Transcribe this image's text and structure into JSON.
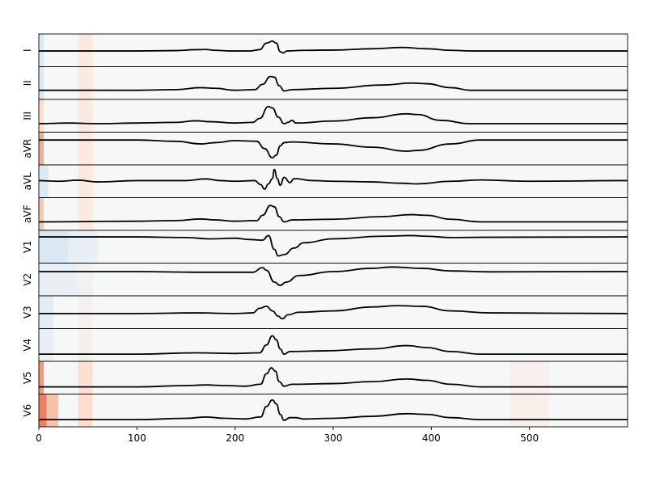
{
  "chart_data": {
    "type": "line",
    "title": "",
    "xlabel": "",
    "ylabel": "",
    "xlim": [
      0,
      600
    ],
    "ylim": [
      -1,
      1
    ],
    "x_ticks": [
      0,
      100,
      200,
      300,
      400,
      500
    ],
    "x_tick_labels": [
      "0",
      "100",
      "200",
      "300",
      "400",
      "500"
    ],
    "grid": false,
    "background_heatmap": {
      "colormap": "diverging blue-white-red",
      "base_color": "#f6f8f8",
      "description_note": "per-lead relevance shading; strongest near x=0-10 and x=40-55, faint near x=480-520"
    },
    "leads": [
      {
        "name": "I",
        "baseline": -0.05,
        "wave": [
          [
            0,
            -0.05
          ],
          [
            5,
            -0.05
          ],
          [
            100,
            -0.05
          ],
          [
            140,
            -0.02
          ],
          [
            160,
            0.05
          ],
          [
            170,
            0.06
          ],
          [
            180,
            0.0
          ],
          [
            195,
            -0.05
          ],
          [
            215,
            -0.05
          ],
          [
            225,
            0.05
          ],
          [
            232,
            0.55
          ],
          [
            238,
            0.7
          ],
          [
            242,
            0.55
          ],
          [
            246,
            -0.1
          ],
          [
            249,
            -0.2
          ],
          [
            253,
            -0.05
          ],
          [
            270,
            0.0
          ],
          [
            300,
            0.02
          ],
          [
            340,
            0.12
          ],
          [
            370,
            0.22
          ],
          [
            395,
            0.12
          ],
          [
            420,
            0.0
          ],
          [
            440,
            -0.05
          ],
          [
            600,
            -0.05
          ]
        ],
        "shade": [
          [
            "#d7e7f3",
            0,
            5
          ],
          [
            "#fde7dc",
            40,
            55
          ]
        ]
      },
      {
        "name": "II",
        "baseline": -0.55,
        "wave": [
          [
            0,
            -0.55
          ],
          [
            100,
            -0.55
          ],
          [
            140,
            -0.5
          ],
          [
            165,
            -0.35
          ],
          [
            180,
            -0.4
          ],
          [
            200,
            -0.55
          ],
          [
            220,
            -0.5
          ],
          [
            228,
            -0.1
          ],
          [
            236,
            0.5
          ],
          [
            240,
            0.45
          ],
          [
            245,
            -0.2
          ],
          [
            250,
            -0.6
          ],
          [
            258,
            -0.5
          ],
          [
            300,
            -0.4
          ],
          [
            350,
            -0.15
          ],
          [
            380,
            0.0
          ],
          [
            395,
            -0.05
          ],
          [
            420,
            -0.35
          ],
          [
            440,
            -0.55
          ],
          [
            600,
            -0.55
          ]
        ],
        "shade": [
          [
            "#d6e6f2",
            0,
            5
          ],
          [
            "#fde7dc",
            40,
            55
          ]
        ]
      },
      {
        "name": "III",
        "baseline": -0.6,
        "wave": [
          [
            0,
            -0.6
          ],
          [
            30,
            -0.55
          ],
          [
            60,
            -0.6
          ],
          [
            100,
            -0.55
          ],
          [
            140,
            -0.5
          ],
          [
            160,
            -0.38
          ],
          [
            175,
            -0.45
          ],
          [
            200,
            -0.55
          ],
          [
            218,
            -0.5
          ],
          [
            225,
            -0.2
          ],
          [
            234,
            0.7
          ],
          [
            238,
            0.6
          ],
          [
            244,
            -0.1
          ],
          [
            250,
            -0.6
          ],
          [
            254,
            -0.5
          ],
          [
            258,
            -0.35
          ],
          [
            262,
            -0.55
          ],
          [
            300,
            -0.4
          ],
          [
            340,
            -0.15
          ],
          [
            375,
            0.15
          ],
          [
            385,
            0.1
          ],
          [
            410,
            -0.35
          ],
          [
            440,
            -0.6
          ],
          [
            600,
            -0.6
          ]
        ],
        "shade": [
          [
            "#fbd9c6",
            0,
            5
          ],
          [
            "#fde7dc",
            40,
            55
          ]
        ]
      },
      {
        "name": "aVR",
        "baseline": 0.65,
        "wave": [
          [
            0,
            0.65
          ],
          [
            100,
            0.65
          ],
          [
            140,
            0.55
          ],
          [
            165,
            0.35
          ],
          [
            180,
            0.45
          ],
          [
            200,
            0.6
          ],
          [
            222,
            0.55
          ],
          [
            230,
            0.0
          ],
          [
            238,
            -0.7
          ],
          [
            242,
            -0.5
          ],
          [
            246,
            0.2
          ],
          [
            250,
            0.45
          ],
          [
            258,
            0.5
          ],
          [
            300,
            0.35
          ],
          [
            340,
            0.1
          ],
          [
            375,
            -0.2
          ],
          [
            385,
            -0.15
          ],
          [
            420,
            0.35
          ],
          [
            450,
            0.65
          ],
          [
            600,
            0.65
          ]
        ],
        "shade": [
          [
            "#f2a37f",
            0,
            5
          ],
          [
            "#fde7dc",
            40,
            55
          ]
        ]
      },
      {
        "name": "aVL",
        "baseline": 0.0,
        "wave": [
          [
            0,
            0.05
          ],
          [
            20,
            0.0
          ],
          [
            40,
            0.08
          ],
          [
            60,
            -0.05
          ],
          [
            100,
            0.05
          ],
          [
            150,
            0.05
          ],
          [
            170,
            0.18
          ],
          [
            185,
            0.05
          ],
          [
            200,
            0.0
          ],
          [
            220,
            0.05
          ],
          [
            226,
            -0.25
          ],
          [
            230,
            -0.6
          ],
          [
            234,
            -0.2
          ],
          [
            238,
            0.2
          ],
          [
            240,
            0.9
          ],
          [
            243,
            0.2
          ],
          [
            246,
            -0.3
          ],
          [
            250,
            0.3
          ],
          [
            256,
            -0.1
          ],
          [
            260,
            0.2
          ],
          [
            280,
            0.05
          ],
          [
            300,
            0.0
          ],
          [
            340,
            -0.05
          ],
          [
            370,
            -0.15
          ],
          [
            385,
            -0.2
          ],
          [
            420,
            0.0
          ],
          [
            450,
            0.1
          ],
          [
            500,
            0.0
          ],
          [
            600,
            0.05
          ]
        ],
        "shade": [
          [
            "#d8e8f4",
            0,
            10
          ],
          [
            "#fde6d9",
            40,
            55
          ]
        ]
      },
      {
        "name": "aVF",
        "baseline": -0.6,
        "wave": [
          [
            0,
            -0.6
          ],
          [
            100,
            -0.55
          ],
          [
            140,
            -0.5
          ],
          [
            165,
            -0.38
          ],
          [
            180,
            -0.45
          ],
          [
            200,
            -0.55
          ],
          [
            222,
            -0.5
          ],
          [
            228,
            -0.1
          ],
          [
            236,
            0.65
          ],
          [
            240,
            0.55
          ],
          [
            245,
            -0.2
          ],
          [
            250,
            -0.6
          ],
          [
            258,
            -0.45
          ],
          [
            300,
            -0.4
          ],
          [
            350,
            -0.2
          ],
          [
            380,
            -0.05
          ],
          [
            395,
            -0.1
          ],
          [
            420,
            -0.4
          ],
          [
            450,
            -0.6
          ],
          [
            600,
            -0.6
          ]
        ],
        "shade": [
          [
            "#f6c0a5",
            0,
            5
          ],
          [
            "#fde7dc",
            40,
            55
          ]
        ]
      },
      {
        "name": "V1",
        "baseline": 0.75,
        "wave": [
          [
            0,
            0.75
          ],
          [
            100,
            0.75
          ],
          [
            150,
            0.7
          ],
          [
            175,
            0.6
          ],
          [
            200,
            0.65
          ],
          [
            215,
            0.55
          ],
          [
            228,
            0.5
          ],
          [
            234,
            0.85
          ],
          [
            240,
            -0.2
          ],
          [
            244,
            -0.7
          ],
          [
            250,
            -0.6
          ],
          [
            260,
            -0.1
          ],
          [
            270,
            0.3
          ],
          [
            300,
            0.6
          ],
          [
            350,
            0.8
          ],
          [
            380,
            0.85
          ],
          [
            395,
            0.8
          ],
          [
            420,
            0.7
          ],
          [
            450,
            0.72
          ],
          [
            600,
            0.75
          ]
        ],
        "shade": [
          [
            "#d3e5f2",
            0,
            30
          ],
          [
            "#e6eef5",
            30,
            60
          ]
        ]
      },
      {
        "name": "V2",
        "baseline": 0.6,
        "wave": [
          [
            0,
            0.6
          ],
          [
            100,
            0.6
          ],
          [
            160,
            0.55
          ],
          [
            200,
            0.55
          ],
          [
            218,
            0.55
          ],
          [
            228,
            0.9
          ],
          [
            232,
            0.7
          ],
          [
            240,
            -0.2
          ],
          [
            246,
            -0.45
          ],
          [
            252,
            -0.2
          ],
          [
            265,
            0.3
          ],
          [
            300,
            0.6
          ],
          [
            340,
            0.85
          ],
          [
            360,
            0.95
          ],
          [
            390,
            0.85
          ],
          [
            420,
            0.65
          ],
          [
            460,
            0.58
          ],
          [
            600,
            0.6
          ]
        ],
        "shade": [
          [
            "#e5eef4",
            0,
            40
          ],
          [
            "#f1eeee",
            40,
            55
          ]
        ]
      },
      {
        "name": "V3",
        "baseline": -0.1,
        "wave": [
          [
            0,
            -0.1
          ],
          [
            100,
            -0.1
          ],
          [
            160,
            -0.05
          ],
          [
            200,
            -0.1
          ],
          [
            218,
            -0.05
          ],
          [
            225,
            0.3
          ],
          [
            232,
            0.45
          ],
          [
            238,
            0.1
          ],
          [
            244,
            -0.3
          ],
          [
            248,
            -0.5
          ],
          [
            254,
            -0.2
          ],
          [
            265,
            0.0
          ],
          [
            300,
            0.1
          ],
          [
            340,
            0.4
          ],
          [
            365,
            0.5
          ],
          [
            390,
            0.45
          ],
          [
            420,
            0.1
          ],
          [
            460,
            -0.05
          ],
          [
            600,
            -0.1
          ]
        ],
        "shade": [
          [
            "#e1ebf3",
            0,
            15
          ],
          [
            "#f3efee",
            40,
            55
          ]
        ]
      },
      {
        "name": "V4",
        "baseline": -0.7,
        "wave": [
          [
            0,
            -0.7
          ],
          [
            100,
            -0.7
          ],
          [
            160,
            -0.6
          ],
          [
            200,
            -0.65
          ],
          [
            225,
            -0.6
          ],
          [
            232,
            0.0
          ],
          [
            238,
            0.7
          ],
          [
            242,
            0.4
          ],
          [
            246,
            -0.3
          ],
          [
            250,
            -0.7
          ],
          [
            256,
            -0.5
          ],
          [
            290,
            -0.45
          ],
          [
            340,
            -0.3
          ],
          [
            375,
            -0.05
          ],
          [
            395,
            -0.2
          ],
          [
            420,
            -0.5
          ],
          [
            450,
            -0.7
          ],
          [
            600,
            -0.7
          ]
        ],
        "shade": [
          [
            "#e4ecf4",
            0,
            15
          ],
          [
            "#f5ede8",
            40,
            55
          ]
        ]
      },
      {
        "name": "V5",
        "baseline": -0.7,
        "wave": [
          [
            0,
            -0.7
          ],
          [
            100,
            -0.7
          ],
          [
            150,
            -0.6
          ],
          [
            170,
            -0.55
          ],
          [
            190,
            -0.6
          ],
          [
            210,
            -0.65
          ],
          [
            226,
            -0.5
          ],
          [
            232,
            0.3
          ],
          [
            237,
            0.75
          ],
          [
            241,
            0.5
          ],
          [
            245,
            -0.3
          ],
          [
            250,
            -0.65
          ],
          [
            258,
            -0.5
          ],
          [
            300,
            -0.45
          ],
          [
            340,
            -0.3
          ],
          [
            375,
            -0.1
          ],
          [
            395,
            -0.2
          ],
          [
            420,
            -0.5
          ],
          [
            450,
            -0.7
          ],
          [
            600,
            -0.7
          ]
        ],
        "shade": [
          [
            "#ee8a64",
            0,
            5
          ],
          [
            "#fbdccd",
            40,
            55
          ],
          [
            "#f8efec",
            480,
            520
          ]
        ]
      },
      {
        "name": "V6",
        "baseline": -0.7,
        "wave": [
          [
            0,
            -0.7
          ],
          [
            100,
            -0.7
          ],
          [
            150,
            -0.6
          ],
          [
            170,
            -0.5
          ],
          [
            190,
            -0.6
          ],
          [
            210,
            -0.65
          ],
          [
            226,
            -0.5
          ],
          [
            232,
            0.3
          ],
          [
            238,
            0.8
          ],
          [
            242,
            0.5
          ],
          [
            246,
            -0.3
          ],
          [
            250,
            -0.75
          ],
          [
            256,
            -0.55
          ],
          [
            262,
            -0.55
          ],
          [
            270,
            -0.65
          ],
          [
            300,
            -0.6
          ],
          [
            340,
            -0.45
          ],
          [
            375,
            -0.25
          ],
          [
            395,
            -0.3
          ],
          [
            420,
            -0.55
          ],
          [
            450,
            -0.7
          ],
          [
            600,
            -0.7
          ]
        ],
        "shade": [
          [
            "#e86a46",
            0,
            8
          ],
          [
            "#f6b99d",
            8,
            20
          ],
          [
            "#fbd9c6",
            40,
            55
          ],
          [
            "#f8ece7",
            480,
            520
          ]
        ]
      }
    ]
  }
}
